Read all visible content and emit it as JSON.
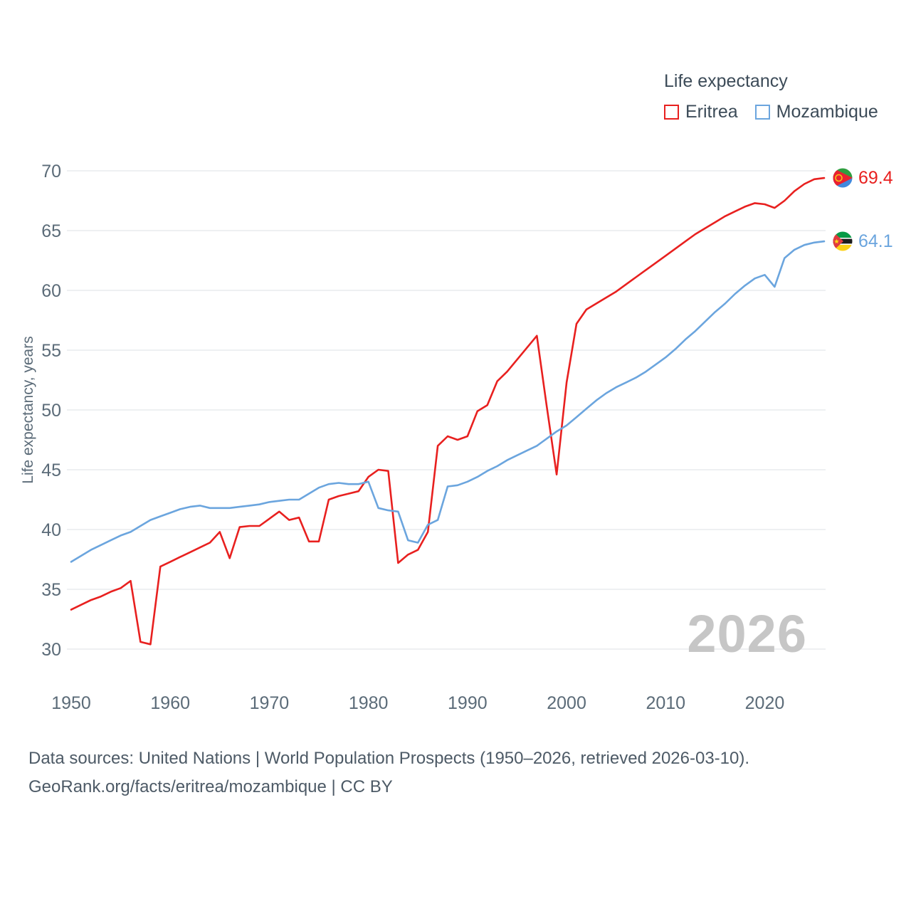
{
  "colors": {
    "eritrea": "#e8201f",
    "mozambique": "#6ba5de",
    "gridline": "#e8ebee",
    "tick_label": "#5b6b78",
    "axis_title": "#5b6b78",
    "legend_text": "#3c4b58",
    "watermark": "#c6c6c6",
    "footer_text": "#4d5a66"
  },
  "legend": {
    "title": "Life expectancy",
    "series": [
      {
        "label": "Eritrea",
        "color": "#e8201f"
      },
      {
        "label": "Mozambique",
        "color": "#6ba5de"
      }
    ]
  },
  "chart_data": {
    "type": "line",
    "title": "Life expectancy",
    "xlabel": "",
    "ylabel": "Life expectancy, years",
    "x_start": 1950,
    "x_end": 2026,
    "ylim": [
      30,
      70
    ],
    "yticks": [
      30,
      35,
      40,
      45,
      50,
      55,
      60,
      65,
      70
    ],
    "xticks": [
      1950,
      1960,
      1970,
      1980,
      1990,
      2000,
      2010,
      2020
    ],
    "grid": "horizontal-only",
    "legend_position": "top-right",
    "watermark": "2026",
    "series": [
      {
        "name": "Eritrea",
        "color": "#e8201f",
        "end_label": "69.4",
        "values": [
          33.3,
          33.7,
          34.1,
          34.4,
          34.8,
          35.1,
          35.7,
          30.6,
          30.4,
          36.9,
          37.3,
          37.7,
          38.1,
          38.5,
          38.9,
          39.8,
          37.6,
          40.2,
          40.3,
          40.3,
          40.9,
          41.5,
          40.8,
          41.0,
          39.0,
          39.0,
          42.5,
          42.8,
          43.0,
          43.2,
          44.4,
          45.0,
          44.9,
          37.2,
          37.9,
          38.3,
          39.8,
          47.0,
          47.8,
          47.5,
          47.8,
          49.9,
          50.4,
          52.4,
          53.2,
          54.2,
          55.2,
          56.2,
          50.3,
          44.6,
          52.3,
          57.2,
          58.4,
          58.9,
          59.4,
          59.9,
          60.5,
          61.1,
          61.7,
          62.3,
          62.9,
          63.5,
          64.1,
          64.7,
          65.2,
          65.7,
          66.2,
          66.6,
          67.0,
          67.3,
          67.2,
          66.9,
          67.5,
          68.3,
          68.9,
          69.3,
          69.4
        ]
      },
      {
        "name": "Mozambique",
        "color": "#6ba5de",
        "end_label": "64.1",
        "values": [
          37.3,
          37.8,
          38.3,
          38.7,
          39.1,
          39.5,
          39.8,
          40.3,
          40.8,
          41.1,
          41.4,
          41.7,
          41.9,
          42.0,
          41.8,
          41.8,
          41.8,
          41.9,
          42.0,
          42.1,
          42.3,
          42.4,
          42.5,
          42.5,
          43.0,
          43.5,
          43.8,
          43.9,
          43.8,
          43.8,
          44.0,
          41.8,
          41.6,
          41.5,
          39.1,
          38.9,
          40.4,
          40.8,
          43.6,
          43.7,
          44.0,
          44.4,
          44.9,
          45.3,
          45.8,
          46.2,
          46.6,
          47.0,
          47.6,
          48.2,
          48.7,
          49.4,
          50.1,
          50.8,
          51.4,
          51.9,
          52.3,
          52.7,
          53.2,
          53.8,
          54.4,
          55.1,
          55.9,
          56.6,
          57.4,
          58.2,
          58.9,
          59.7,
          60.4,
          61.0,
          61.3,
          60.3,
          62.7,
          63.4,
          63.8,
          64.0,
          64.1
        ]
      }
    ]
  },
  "footer": {
    "line1": "Data sources: United Nations | World Population Prospects (1950–2026, retrieved 2026-03-10).",
    "line2": "GeoRank.org/facts/eritrea/mozambique | CC BY"
  }
}
